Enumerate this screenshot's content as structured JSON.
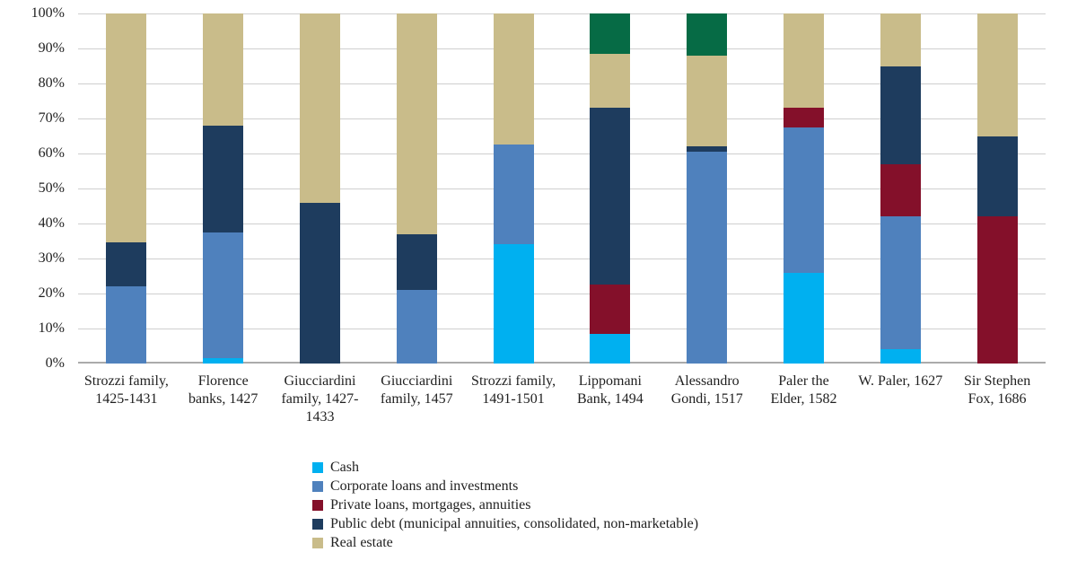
{
  "chart_data": {
    "type": "bar",
    "subtype": "stacked-100-percent",
    "title": "",
    "xlabel": "",
    "ylabel": "",
    "categories": [
      "Strozzi family, 1425-1431",
      "Florence banks, 1427",
      "Giucciardini family, 1427-1433",
      "Giucciardini family, 1457",
      "Strozzi family, 1491-1501",
      "Lippomani Bank, 1494",
      "Alessandro Gondi, 1517",
      "Paler the Elder, 1582",
      "W. Paler, 1627",
      "Sir Stephen Fox, 1686"
    ],
    "series": [
      {
        "name": "Cash",
        "color": "#00b0f0",
        "in_legend": true,
        "values": [
          0,
          1.5,
          0,
          0,
          34,
          8.5,
          0,
          26,
          4,
          0
        ]
      },
      {
        "name": "Corporate loans and investments",
        "color": "#4f81bd",
        "in_legend": true,
        "values": [
          22,
          36,
          0,
          21,
          28.5,
          0,
          60.5,
          41.5,
          38,
          0
        ]
      },
      {
        "name": "Private loans, mortgages, annuities",
        "color": "#84102a",
        "in_legend": true,
        "values": [
          0,
          0,
          0,
          0,
          0,
          14,
          0,
          5.5,
          15,
          42
        ]
      },
      {
        "name": "Public debt (municipal annuities, consolidated, non-marketable)",
        "color": "#1e3c5e",
        "in_legend": true,
        "values": [
          12.5,
          30.5,
          46,
          16,
          0,
          50.5,
          1.5,
          0,
          28,
          23
        ]
      },
      {
        "name": "Real estate",
        "color": "#c9bc8a",
        "in_legend": true,
        "values": [
          65.5,
          32,
          54,
          63,
          37.5,
          15.5,
          26,
          27,
          15,
          35
        ]
      },
      {
        "name": "Unlabeled segment (dark green)",
        "color": "#066b45",
        "in_legend": false,
        "values": [
          0,
          0,
          0,
          0,
          0,
          11.5,
          12,
          0,
          0,
          0
        ]
      }
    ],
    "axes": {
      "yticks": [
        "0%",
        "10%",
        "20%",
        "30%",
        "40%",
        "50%",
        "60%",
        "70%",
        "80%",
        "90%",
        "100%"
      ],
      "ylim": [
        0,
        100
      ],
      "grid": true
    },
    "legend": {
      "position": "bottom-left"
    }
  }
}
